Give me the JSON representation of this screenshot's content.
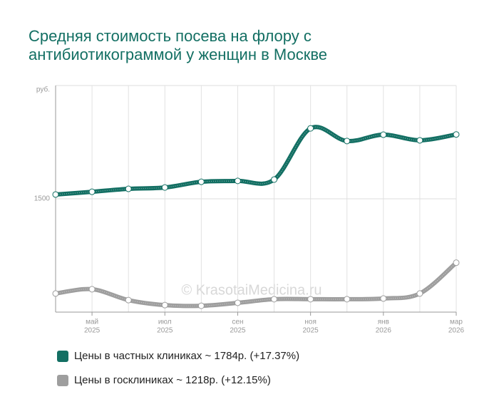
{
  "chart_data": {
    "type": "line",
    "title": "Средняя стоимость посева на флору с антибиотикограммой у женщин в Москве",
    "y_label": "руб.",
    "watermark": "© KrasotaiMedicina.ru",
    "categories": [
      null,
      [
        "май",
        "2025"
      ],
      null,
      [
        "июл",
        "2025"
      ],
      null,
      [
        "сен",
        "2025"
      ],
      null,
      [
        "ноя",
        "2025"
      ],
      null,
      [
        "янв",
        "2026"
      ],
      null,
      [
        "мар",
        "2026"
      ]
    ],
    "series": [
      {
        "name": "Цены в частных клиниках ~ 1784р. (+17.37%)",
        "color": "#136f63",
        "values": [
          1519,
          1531,
          1544,
          1550,
          1575,
          1579,
          1585,
          1811,
          1755,
          1783,
          1758,
          1784
        ]
      },
      {
        "name": "Цены в госклиниках ~ 1218р. (+12.15%)",
        "color": "#9e9e9e",
        "values": [
          1082,
          1101,
          1053,
          1031,
          1028,
          1041,
          1057,
          1057,
          1057,
          1060,
          1082,
          1218
        ]
      }
    ],
    "ylim": [
      1000,
      2000
    ],
    "yticks": [
      1500
    ],
    "grid": true
  }
}
